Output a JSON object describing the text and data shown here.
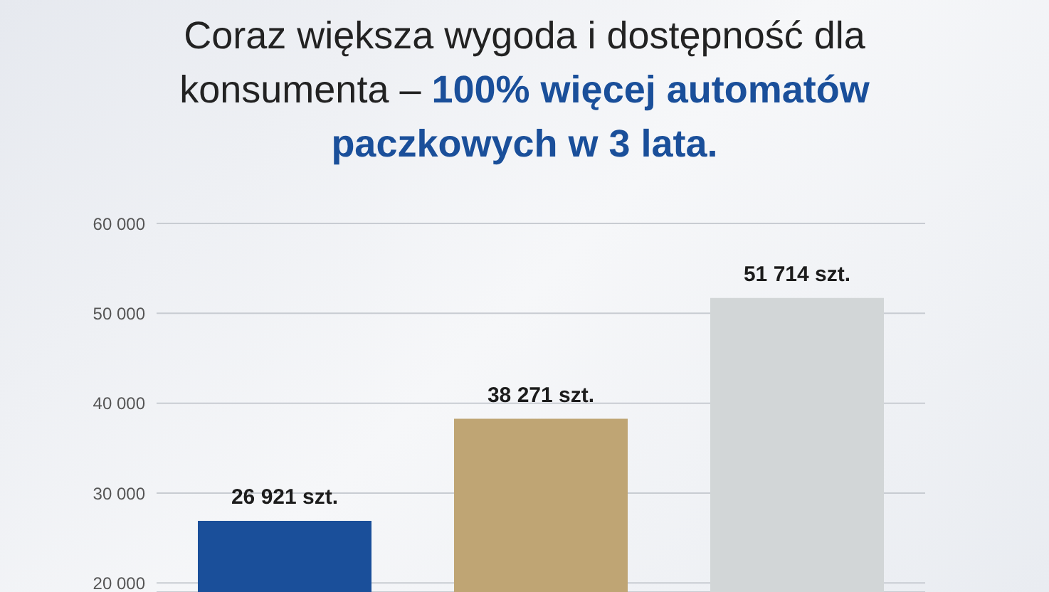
{
  "chart_data": {
    "type": "bar",
    "title": "Coraz większa wygoda i dostępność dla konsumenta –",
    "subtitle": "100% więcej automatów paczkowych w 3 lata.",
    "categories": [
      null,
      null,
      null
    ],
    "values": [
      26921,
      38271,
      51714
    ],
    "colors": [
      "#1a4f9a",
      "#bfa574",
      "#d2d6d7"
    ],
    "value_labels": [
      "26 921 szt.",
      "38 271 szt.",
      "51 714 szt."
    ],
    "ylim": [
      19000,
      60000
    ],
    "yticks": [
      {
        "value": 20000,
        "label": "20 000"
      },
      {
        "value": 30000,
        "label": "30 000"
      },
      {
        "value": 40000,
        "label": "40 000"
      },
      {
        "value": 50000,
        "label": "50 000"
      },
      {
        "value": 60000,
        "label": "60 000"
      }
    ],
    "grid": "y"
  }
}
